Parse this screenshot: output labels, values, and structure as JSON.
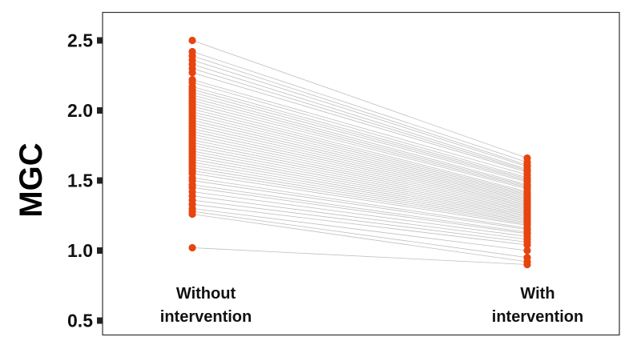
{
  "chart_data": {
    "type": "line",
    "ylabel": "MGC",
    "categories": [
      "Without\nintervention",
      "With\nintervention"
    ],
    "yticks": [
      "0.5",
      "1.0",
      "1.5",
      "2.0",
      "2.5"
    ],
    "ylim": [
      0.4,
      2.7
    ],
    "grid": false,
    "marker_color": "#E8440F",
    "line_color": "#aaaaaa",
    "series": [
      {
        "values": [
          2.5,
          1.66
        ]
      },
      {
        "values": [
          2.42,
          1.63
        ]
      },
      {
        "values": [
          2.39,
          1.61
        ]
      },
      {
        "values": [
          2.36,
          1.6
        ]
      },
      {
        "values": [
          2.33,
          1.58
        ]
      },
      {
        "values": [
          2.3,
          1.57
        ]
      },
      {
        "values": [
          2.27,
          1.56
        ]
      },
      {
        "values": [
          2.22,
          1.54
        ]
      },
      {
        "values": [
          2.2,
          1.52
        ]
      },
      {
        "values": [
          2.17,
          1.51
        ]
      },
      {
        "values": [
          2.15,
          1.5
        ]
      },
      {
        "values": [
          2.13,
          1.49
        ]
      },
      {
        "values": [
          2.11,
          1.47
        ]
      },
      {
        "values": [
          2.09,
          1.46
        ]
      },
      {
        "values": [
          2.07,
          1.45
        ]
      },
      {
        "values": [
          2.05,
          1.44
        ]
      },
      {
        "values": [
          2.03,
          1.42
        ]
      },
      {
        "values": [
          2.01,
          1.41
        ]
      },
      {
        "values": [
          1.99,
          1.4
        ]
      },
      {
        "values": [
          1.97,
          1.39
        ]
      },
      {
        "values": [
          1.95,
          1.38
        ]
      },
      {
        "values": [
          1.93,
          1.37
        ]
      },
      {
        "values": [
          1.91,
          1.36
        ]
      },
      {
        "values": [
          1.89,
          1.35
        ]
      },
      {
        "values": [
          1.87,
          1.34
        ]
      },
      {
        "values": [
          1.85,
          1.33
        ]
      },
      {
        "values": [
          1.83,
          1.32
        ]
      },
      {
        "values": [
          1.81,
          1.31
        ]
      },
      {
        "values": [
          1.79,
          1.3
        ]
      },
      {
        "values": [
          1.77,
          1.29
        ]
      },
      {
        "values": [
          1.75,
          1.28
        ]
      },
      {
        "values": [
          1.73,
          1.27
        ]
      },
      {
        "values": [
          1.71,
          1.26
        ]
      },
      {
        "values": [
          1.69,
          1.25
        ]
      },
      {
        "values": [
          1.67,
          1.24
        ]
      },
      {
        "values": [
          1.65,
          1.23
        ]
      },
      {
        "values": [
          1.63,
          1.22
        ]
      },
      {
        "values": [
          1.61,
          1.21
        ]
      },
      {
        "values": [
          1.59,
          1.2
        ]
      },
      {
        "values": [
          1.57,
          1.19
        ]
      },
      {
        "values": [
          1.55,
          1.18
        ]
      },
      {
        "values": [
          1.52,
          1.16
        ]
      },
      {
        "values": [
          1.5,
          1.15
        ]
      },
      {
        "values": [
          1.47,
          1.13
        ]
      },
      {
        "values": [
          1.45,
          1.12
        ]
      },
      {
        "values": [
          1.42,
          1.1
        ]
      },
      {
        "values": [
          1.39,
          1.08
        ]
      },
      {
        "values": [
          1.36,
          1.06
        ]
      },
      {
        "values": [
          1.33,
          1.04
        ]
      },
      {
        "values": [
          1.3,
          1.0
        ]
      },
      {
        "values": [
          1.28,
          0.95
        ]
      },
      {
        "values": [
          1.26,
          0.92
        ]
      },
      {
        "values": [
          1.02,
          0.9
        ]
      }
    ]
  }
}
